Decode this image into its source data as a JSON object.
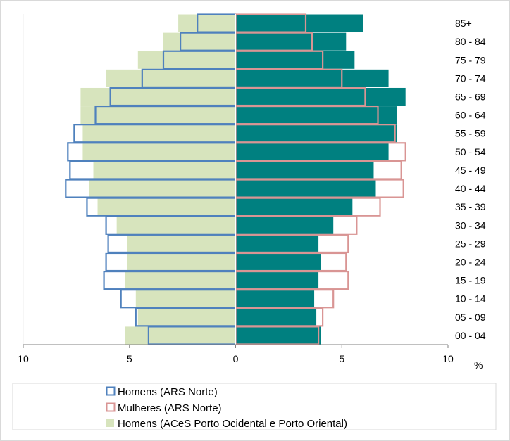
{
  "chart_data": {
    "type": "bar",
    "orientation": "horizontal-population-pyramid",
    "categories": [
      "00 - 04",
      "05 - 09",
      "10 - 14",
      "15 - 19",
      "20 - 24",
      "25 - 29",
      "30 - 34",
      "35 - 39",
      "40 - 44",
      "45 - 49",
      "50 - 54",
      "55 - 59",
      "60 - 64",
      "65 - 69",
      "70 - 74",
      "75 - 79",
      "80 - 84",
      "85+"
    ],
    "series": [
      {
        "name": "Homens (ARS Norte)",
        "side": "left",
        "style": "outline",
        "color": "#4f81bd",
        "values": [
          4.1,
          4.7,
          5.4,
          6.2,
          6.1,
          6.0,
          6.1,
          7.0,
          8.0,
          7.8,
          7.9,
          7.6,
          6.6,
          5.9,
          4.4,
          3.4,
          2.6,
          1.8
        ]
      },
      {
        "name": "Mulheres (ARS Norte)",
        "side": "right",
        "style": "outline",
        "color": "#d99594",
        "values": [
          3.9,
          4.1,
          4.6,
          5.3,
          5.2,
          5.3,
          5.7,
          6.8,
          7.9,
          7.8,
          8.0,
          7.5,
          6.7,
          6.1,
          5.0,
          4.1,
          3.6,
          3.3
        ]
      },
      {
        "name": "Homens (ACeS Porto Ocidental e Porto Oriental)",
        "side": "left",
        "style": "fill",
        "color": "#d7e4bd",
        "values": [
          5.2,
          4.6,
          4.7,
          5.2,
          5.1,
          5.1,
          5.6,
          6.5,
          6.9,
          6.7,
          7.2,
          7.2,
          7.3,
          7.3,
          6.1,
          4.6,
          3.4,
          2.7
        ]
      },
      {
        "name": "",
        "side": "right",
        "style": "fill",
        "color": "#008080",
        "values": [
          4.0,
          3.8,
          3.7,
          3.9,
          4.0,
          3.9,
          4.6,
          5.5,
          6.6,
          6.5,
          7.2,
          7.6,
          7.6,
          8.0,
          7.2,
          5.6,
          5.2,
          6.0
        ]
      }
    ],
    "xlim": [
      -10,
      10
    ],
    "x_ticks": [
      "10",
      "5",
      "0",
      "5",
      "10"
    ],
    "xlabel": "%",
    "legend_position": "bottom",
    "grid": false
  }
}
